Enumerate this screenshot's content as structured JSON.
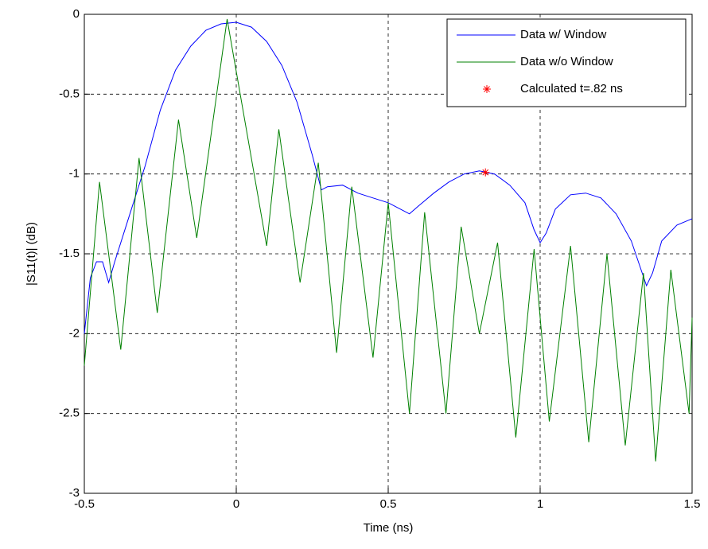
{
  "chart_data": {
    "type": "line",
    "xlabel": "Time (ns)",
    "ylabel": "|S11(t)| (dB)",
    "xlim": [
      -0.5,
      1.5
    ],
    "xticks": [
      -0.5,
      0,
      0.5,
      1,
      1.5
    ],
    "ylim": [
      -3,
      0
    ],
    "yticks": [
      -3,
      -2.5,
      -2,
      -1.5,
      -1,
      -0.5,
      0
    ],
    "grid": true,
    "legend": "top-right",
    "series": [
      {
        "name": "Data w/ Window",
        "color": "#0000ff",
        "marker": "none",
        "x": [
          -0.5,
          -0.48,
          -0.46,
          -0.44,
          -0.42,
          -0.4,
          -0.35,
          -0.3,
          -0.25,
          -0.2,
          -0.15,
          -0.1,
          -0.05,
          0,
          0.05,
          0.1,
          0.15,
          0.2,
          0.25,
          0.28,
          0.3,
          0.35,
          0.4,
          0.45,
          0.5,
          0.55,
          0.57,
          0.6,
          0.65,
          0.7,
          0.75,
          0.8,
          0.85,
          0.9,
          0.95,
          0.98,
          1.0,
          1.02,
          1.05,
          1.1,
          1.15,
          1.2,
          1.25,
          1.3,
          1.35,
          1.37,
          1.4,
          1.45,
          1.5
        ],
        "values": [
          -2.0,
          -1.65,
          -1.55,
          -1.55,
          -1.68,
          -1.55,
          -1.25,
          -0.95,
          -0.6,
          -0.35,
          -0.2,
          -0.1,
          -0.06,
          -0.05,
          -0.08,
          -0.17,
          -0.32,
          -0.55,
          -0.88,
          -1.1,
          -1.08,
          -1.07,
          -1.12,
          -1.15,
          -1.18,
          -1.23,
          -1.25,
          -1.2,
          -1.12,
          -1.05,
          -1.0,
          -0.98,
          -1.0,
          -1.07,
          -1.18,
          -1.35,
          -1.43,
          -1.37,
          -1.22,
          -1.13,
          -1.12,
          -1.15,
          -1.25,
          -1.42,
          -1.7,
          -1.62,
          -1.42,
          -1.32,
          -1.28
        ]
      },
      {
        "name": "Data w/o Window",
        "color": "#008000",
        "marker": "none",
        "x": [
          -0.5,
          -0.45,
          -0.38,
          -0.32,
          -0.26,
          -0.19,
          -0.13,
          -0.03,
          0.1,
          0.14,
          0.21,
          0.27,
          0.33,
          0.38,
          0.45,
          0.5,
          0.57,
          0.62,
          0.69,
          0.74,
          0.8,
          0.86,
          0.92,
          0.98,
          1.03,
          1.1,
          1.16,
          1.22,
          1.28,
          1.34,
          1.38,
          1.43,
          1.49,
          1.5
        ],
        "values": [
          -2.2,
          -1.05,
          -2.1,
          -0.9,
          -1.87,
          -0.66,
          -1.4,
          -0.03,
          -1.45,
          -0.72,
          -1.68,
          -0.93,
          -2.12,
          -1.08,
          -2.15,
          -1.18,
          -2.5,
          -1.24,
          -2.5,
          -1.33,
          -2.0,
          -1.43,
          -2.65,
          -1.47,
          -2.55,
          -1.45,
          -2.68,
          -1.5,
          -2.7,
          -1.62,
          -2.8,
          -1.6,
          -2.5,
          -1.9
        ]
      },
      {
        "name": "Calculated t=.82 ns",
        "color": "#ff0000",
        "marker": "star",
        "x": [
          0.82
        ],
        "values": [
          -0.99
        ]
      }
    ]
  }
}
